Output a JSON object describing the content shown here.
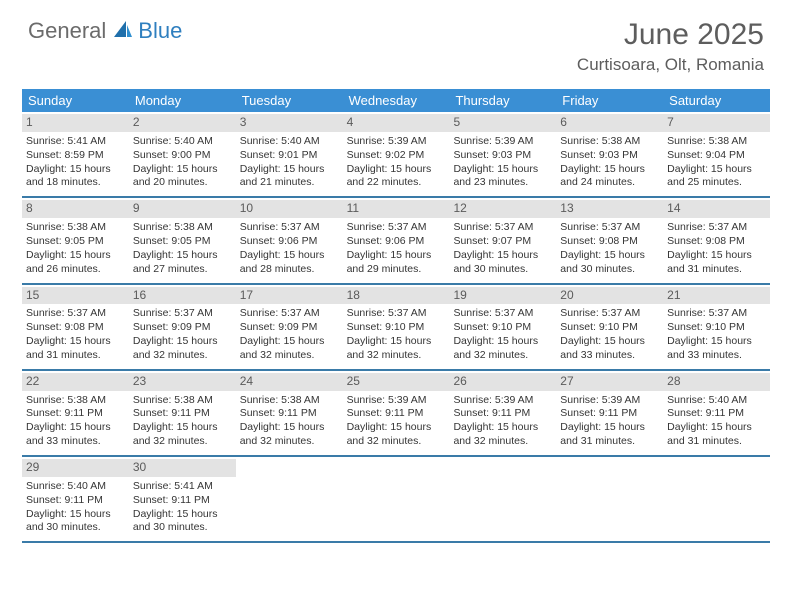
{
  "logo": {
    "general": "General",
    "blue": "Blue"
  },
  "title": "June 2025",
  "location": "Curtisoara, Olt, Romania",
  "colors": {
    "header_bg": "#3a8fd4",
    "row_border": "#3a7ba8",
    "daynum_bg": "#e3e3e3",
    "text": "#353535",
    "title_text": "#5d5d5d",
    "logo_gray": "#6b6b6b",
    "logo_blue": "#2f7fbf"
  },
  "weekdays": [
    "Sunday",
    "Monday",
    "Tuesday",
    "Wednesday",
    "Thursday",
    "Friday",
    "Saturday"
  ],
  "weeks": [
    [
      {
        "n": "1",
        "sunrise": "5:41 AM",
        "sunset": "8:59 PM",
        "dl": "15 hours and 18 minutes."
      },
      {
        "n": "2",
        "sunrise": "5:40 AM",
        "sunset": "9:00 PM",
        "dl": "15 hours and 20 minutes."
      },
      {
        "n": "3",
        "sunrise": "5:40 AM",
        "sunset": "9:01 PM",
        "dl": "15 hours and 21 minutes."
      },
      {
        "n": "4",
        "sunrise": "5:39 AM",
        "sunset": "9:02 PM",
        "dl": "15 hours and 22 minutes."
      },
      {
        "n": "5",
        "sunrise": "5:39 AM",
        "sunset": "9:03 PM",
        "dl": "15 hours and 23 minutes."
      },
      {
        "n": "6",
        "sunrise": "5:38 AM",
        "sunset": "9:03 PM",
        "dl": "15 hours and 24 minutes."
      },
      {
        "n": "7",
        "sunrise": "5:38 AM",
        "sunset": "9:04 PM",
        "dl": "15 hours and 25 minutes."
      }
    ],
    [
      {
        "n": "8",
        "sunrise": "5:38 AM",
        "sunset": "9:05 PM",
        "dl": "15 hours and 26 minutes."
      },
      {
        "n": "9",
        "sunrise": "5:38 AM",
        "sunset": "9:05 PM",
        "dl": "15 hours and 27 minutes."
      },
      {
        "n": "10",
        "sunrise": "5:37 AM",
        "sunset": "9:06 PM",
        "dl": "15 hours and 28 minutes."
      },
      {
        "n": "11",
        "sunrise": "5:37 AM",
        "sunset": "9:06 PM",
        "dl": "15 hours and 29 minutes."
      },
      {
        "n": "12",
        "sunrise": "5:37 AM",
        "sunset": "9:07 PM",
        "dl": "15 hours and 30 minutes."
      },
      {
        "n": "13",
        "sunrise": "5:37 AM",
        "sunset": "9:08 PM",
        "dl": "15 hours and 30 minutes."
      },
      {
        "n": "14",
        "sunrise": "5:37 AM",
        "sunset": "9:08 PM",
        "dl": "15 hours and 31 minutes."
      }
    ],
    [
      {
        "n": "15",
        "sunrise": "5:37 AM",
        "sunset": "9:08 PM",
        "dl": "15 hours and 31 minutes."
      },
      {
        "n": "16",
        "sunrise": "5:37 AM",
        "sunset": "9:09 PM",
        "dl": "15 hours and 32 minutes."
      },
      {
        "n": "17",
        "sunrise": "5:37 AM",
        "sunset": "9:09 PM",
        "dl": "15 hours and 32 minutes."
      },
      {
        "n": "18",
        "sunrise": "5:37 AM",
        "sunset": "9:10 PM",
        "dl": "15 hours and 32 minutes."
      },
      {
        "n": "19",
        "sunrise": "5:37 AM",
        "sunset": "9:10 PM",
        "dl": "15 hours and 32 minutes."
      },
      {
        "n": "20",
        "sunrise": "5:37 AM",
        "sunset": "9:10 PM",
        "dl": "15 hours and 33 minutes."
      },
      {
        "n": "21",
        "sunrise": "5:37 AM",
        "sunset": "9:10 PM",
        "dl": "15 hours and 33 minutes."
      }
    ],
    [
      {
        "n": "22",
        "sunrise": "5:38 AM",
        "sunset": "9:11 PM",
        "dl": "15 hours and 33 minutes."
      },
      {
        "n": "23",
        "sunrise": "5:38 AM",
        "sunset": "9:11 PM",
        "dl": "15 hours and 32 minutes."
      },
      {
        "n": "24",
        "sunrise": "5:38 AM",
        "sunset": "9:11 PM",
        "dl": "15 hours and 32 minutes."
      },
      {
        "n": "25",
        "sunrise": "5:39 AM",
        "sunset": "9:11 PM",
        "dl": "15 hours and 32 minutes."
      },
      {
        "n": "26",
        "sunrise": "5:39 AM",
        "sunset": "9:11 PM",
        "dl": "15 hours and 32 minutes."
      },
      {
        "n": "27",
        "sunrise": "5:39 AM",
        "sunset": "9:11 PM",
        "dl": "15 hours and 31 minutes."
      },
      {
        "n": "28",
        "sunrise": "5:40 AM",
        "sunset": "9:11 PM",
        "dl": "15 hours and 31 minutes."
      }
    ],
    [
      {
        "n": "29",
        "sunrise": "5:40 AM",
        "sunset": "9:11 PM",
        "dl": "15 hours and 30 minutes."
      },
      {
        "n": "30",
        "sunrise": "5:41 AM",
        "sunset": "9:11 PM",
        "dl": "15 hours and 30 minutes."
      },
      null,
      null,
      null,
      null,
      null
    ]
  ],
  "labels": {
    "sunrise": "Sunrise:",
    "sunset": "Sunset:",
    "daylight": "Daylight:"
  }
}
